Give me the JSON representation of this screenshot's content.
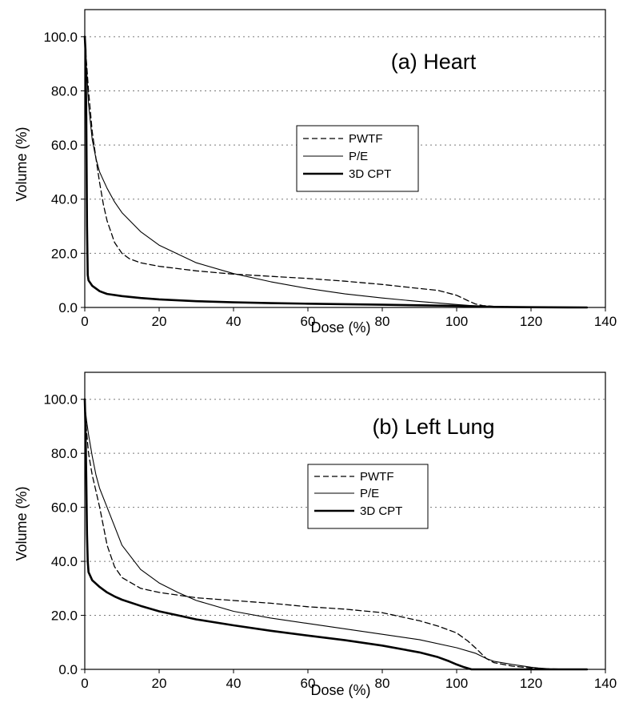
{
  "chart_data": [
    {
      "type": "line",
      "title": "(a) Heart",
      "xlabel": "Dose (%)",
      "ylabel": "Volume (%)",
      "xlim": [
        0,
        140
      ],
      "ylim": [
        0,
        110
      ],
      "xticks": [
        0,
        20,
        40,
        60,
        80,
        100,
        120,
        140
      ],
      "yticks": [
        0,
        20,
        40,
        60,
        80,
        100
      ],
      "xtick_labels": [
        "0",
        "20",
        "40",
        "60",
        "80",
        "100",
        "120",
        "140"
      ],
      "ytick_labels": [
        "0.0",
        "20.0",
        "40.0",
        "60.0",
        "80.0",
        "100.0"
      ],
      "grid": "horizontal dotted",
      "legend": "center-right",
      "series": [
        {
          "name": "PWTF",
          "style": "dashed",
          "x": [
            0,
            0.5,
            1,
            2,
            3,
            4,
            5,
            6,
            7,
            8,
            10,
            12,
            15,
            20,
            30,
            40,
            50,
            60,
            70,
            80,
            90,
            95,
            100,
            103,
            105,
            107,
            110,
            115,
            120,
            130,
            135
          ],
          "y": [
            98,
            90,
            80,
            65,
            55,
            46,
            38,
            32,
            28,
            24,
            20,
            18,
            16.5,
            15.2,
            13.5,
            12.3,
            11.5,
            10.7,
            9.7,
            8.5,
            7,
            6.3,
            4.5,
            2.5,
            1.3,
            0.7,
            0.4,
            0.2,
            0.1,
            0.05,
            0
          ]
        },
        {
          "name": "P/E",
          "style": "solid",
          "x": [
            0,
            0.5,
            1,
            2,
            3,
            4,
            6,
            8,
            10,
            15,
            20,
            30,
            40,
            50,
            60,
            70,
            80,
            90,
            100,
            105,
            110,
            115,
            120,
            130,
            135
          ],
          "y": [
            98,
            88,
            75,
            62,
            55,
            50,
            44,
            39,
            35,
            28,
            23,
            16.5,
            12.5,
            9.5,
            7,
            5,
            3.5,
            2.2,
            1.1,
            0.6,
            0.3,
            0.15,
            0.08,
            0.02,
            0
          ]
        },
        {
          "name": "3D CPT",
          "style": "solid-thick",
          "x": [
            0,
            0.2,
            0.4,
            0.6,
            0.8,
            1,
            2,
            4,
            6,
            10,
            15,
            20,
            30,
            40,
            50,
            60,
            70,
            80,
            90,
            100,
            105,
            110,
            120,
            130,
            135
          ],
          "y": [
            100,
            95,
            70,
            30,
            12,
            10,
            8,
            6,
            5,
            4.2,
            3.5,
            3,
            2.3,
            1.9,
            1.6,
            1.4,
            1.2,
            1.0,
            0.8,
            0.6,
            0.4,
            0.2,
            0.08,
            0.02,
            0
          ]
        }
      ]
    },
    {
      "type": "line",
      "title": "(b) Left Lung",
      "xlabel": "Dose (%)",
      "ylabel": "Volume (%)",
      "xlim": [
        0,
        140
      ],
      "ylim": [
        0,
        110
      ],
      "xticks": [
        0,
        20,
        40,
        60,
        80,
        100,
        120,
        140
      ],
      "yticks": [
        0,
        20,
        40,
        60,
        80,
        100
      ],
      "xtick_labels": [
        "0",
        "20",
        "40",
        "60",
        "80",
        "100",
        "120",
        "140"
      ],
      "ytick_labels": [
        "0.0",
        "20.0",
        "40.0",
        "60.0",
        "80.0",
        "100.0"
      ],
      "grid": "horizontal dotted",
      "legend": "center-right",
      "series": [
        {
          "name": "PWTF",
          "style": "dashed",
          "x": [
            0,
            0.5,
            1,
            2,
            3,
            4,
            5,
            6,
            8,
            10,
            15,
            20,
            30,
            40,
            50,
            60,
            70,
            80,
            90,
            95,
            100,
            103,
            105,
            108,
            110,
            115,
            120,
            122,
            125,
            130,
            135
          ],
          "y": [
            97,
            88,
            80,
            72,
            66,
            60,
            53,
            46,
            38,
            34,
            30,
            28.5,
            26.5,
            25.5,
            24.5,
            23.2,
            22.3,
            21,
            18,
            16,
            13.5,
            10.5,
            8,
            4,
            2.5,
            1.2,
            0.5,
            0.3,
            0.15,
            0.05,
            0
          ]
        },
        {
          "name": "P/E",
          "style": "solid",
          "x": [
            0,
            0.5,
            1,
            2,
            3,
            4,
            6,
            8,
            10,
            15,
            20,
            25,
            30,
            40,
            50,
            60,
            70,
            80,
            90,
            100,
            105,
            108,
            110,
            115,
            120,
            122,
            125,
            130,
            135
          ],
          "y": [
            98,
            92,
            87,
            79,
            72,
            67,
            60,
            53,
            46,
            37,
            32,
            28.5,
            25.5,
            21.5,
            19,
            17,
            15,
            13,
            11,
            8,
            6,
            4,
            3,
            1.8,
            0.8,
            0.5,
            0.2,
            0.05,
            0
          ]
        },
        {
          "name": "3D CPT",
          "style": "solid-thick",
          "x": [
            0,
            0.2,
            0.4,
            0.6,
            0.8,
            1,
            2,
            4,
            6,
            8,
            10,
            15,
            20,
            25,
            30,
            40,
            50,
            60,
            70,
            80,
            90,
            95,
            98,
            100,
            102,
            104,
            110,
            120,
            130,
            135
          ],
          "y": [
            100,
            90,
            70,
            50,
            40,
            36,
            33,
            30.5,
            28.5,
            27,
            25.8,
            23.5,
            21.5,
            20,
            18.5,
            16.3,
            14.3,
            12.5,
            10.8,
            8.8,
            6.3,
            4.5,
            3,
            1.8,
            0.8,
            0,
            0,
            0,
            0,
            0
          ]
        }
      ]
    }
  ]
}
